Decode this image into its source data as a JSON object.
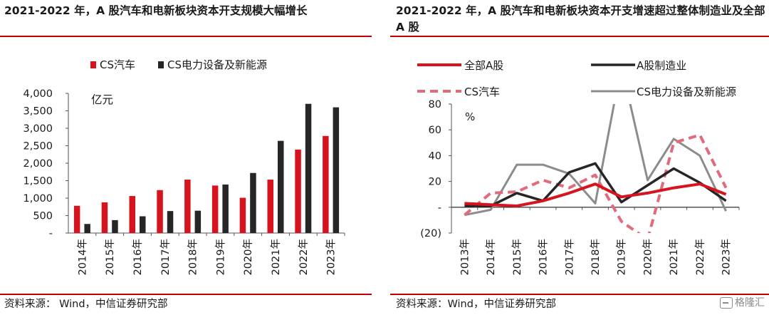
{
  "left": {
    "title": "2021-2022 年，A 股汽车和电新板块资本开支规模大幅增长",
    "source": "资料来源： Wind，中信证券研究部"
  },
  "right": {
    "title": "2021-2022 年，A 股汽车和电新板块资本开支增速超过整体制造业及全部 A 股",
    "source": "资料来源：Wind，中信证券研究部"
  },
  "watermark": "格隆汇",
  "colors": {
    "red": "#d7141d",
    "black": "#262626",
    "pink": "#e06b7d",
    "gray": "#8c8c8c",
    "accent_line": "#c00000"
  },
  "chart_data": [
    {
      "type": "bar",
      "unit_label": "亿元",
      "categories": [
        "2014年",
        "2015年",
        "2016年",
        "2017年",
        "2018年",
        "2019年",
        "2020年",
        "2021年",
        "2022年",
        "2023年"
      ],
      "series": [
        {
          "name": "CS汽车",
          "color": "#d7141d",
          "values": [
            780,
            880,
            1060,
            1230,
            1530,
            1360,
            1010,
            1530,
            2390,
            2780
          ]
        },
        {
          "name": "CS电力设备及新能源",
          "color": "#262626",
          "values": [
            260,
            370,
            480,
            630,
            640,
            1390,
            1720,
            2640,
            3700,
            3600
          ]
        }
      ],
      "ylim": [
        0,
        4000
      ],
      "yticks": [
        0,
        500,
        1000,
        1500,
        2000,
        2500,
        3000,
        3500,
        4000
      ],
      "ytick_labels": [
        "-",
        "500",
        "1,000",
        "1,500",
        "2,000",
        "2,500",
        "3,000",
        "3,500",
        "4,000"
      ],
      "legend_position": "top",
      "grid": false
    },
    {
      "type": "line",
      "unit_label": "%",
      "categories": [
        "2013年",
        "2014年",
        "2015年",
        "2016年",
        "2017年",
        "2018年",
        "2019年",
        "2020年",
        "2021年",
        "2022年",
        "2023年"
      ],
      "series": [
        {
          "name": "全部A股",
          "color": "#d7141d",
          "style": "solid",
          "width": 4,
          "values": [
            3,
            2,
            1,
            5,
            11,
            18,
            8,
            11,
            15,
            18,
            10
          ]
        },
        {
          "name": "A股制造业",
          "color": "#262626",
          "style": "solid",
          "width": 3.5,
          "values": [
            1,
            1,
            11,
            5,
            27,
            34,
            4,
            17,
            30,
            19,
            5
          ]
        },
        {
          "name": "CS汽车",
          "color": "#e06b7d",
          "style": "dashed",
          "width": 4,
          "values": [
            -6,
            11,
            12,
            21,
            15,
            25,
            -11,
            -25,
            50,
            56,
            15
          ]
        },
        {
          "name": "CS电力设备及新能源",
          "color": "#8c8c8c",
          "style": "solid",
          "width": 3,
          "values": [
            -6,
            -2,
            33,
            33,
            26,
            3,
            110,
            21,
            53,
            40,
            -3
          ]
        }
      ],
      "ylim": [
        -20,
        80
      ],
      "yticks": [
        -20,
        0,
        20,
        40,
        60,
        80
      ],
      "ytick_labels": [
        "(20)",
        "-",
        "20",
        "40",
        "60",
        "80"
      ],
      "legend_position": "top",
      "grid": false
    }
  ]
}
